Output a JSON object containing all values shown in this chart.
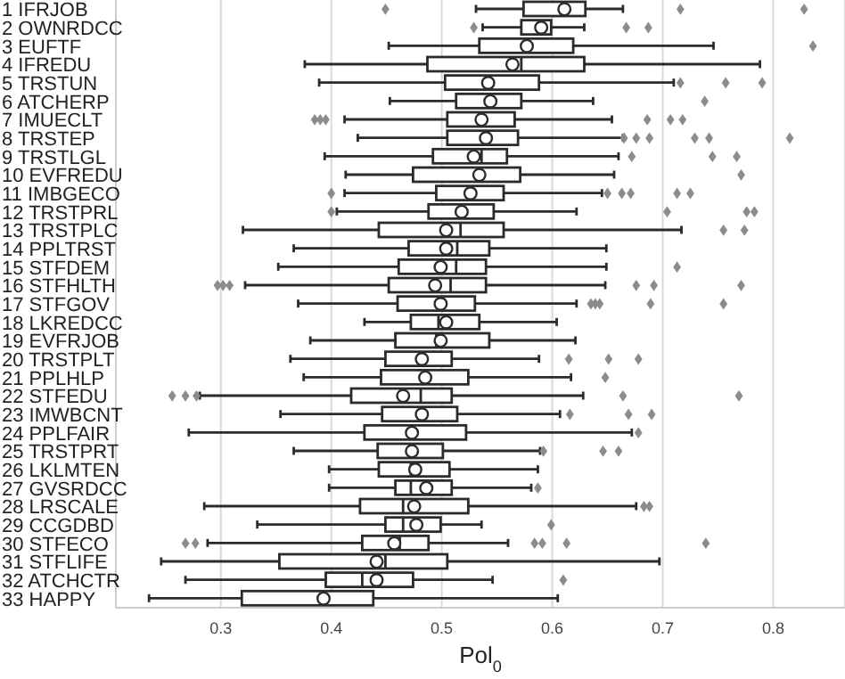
{
  "chart_data": {
    "type": "box",
    "orientation": "horizontal",
    "xlabel": "Pol$_{0}$",
    "categories": [
      "1 IFRJOB",
      "2 OWNRDCC",
      "3 EUFTF",
      "4 IFREDU",
      "5 TRSTUN",
      "6 ATCHERP",
      "7 IMUECLT",
      "8 TRSTEP",
      "9 TRSTLGL",
      "10 EVFREDU",
      "11 IMBGECO",
      "12 TRSTPRL",
      "13 TRSTPLC",
      "14 PPLTRST",
      "15 STFDEM",
      "16 STFHLTH",
      "17 STFGOV",
      "18 LKREDCC",
      "19 EVFRJOB",
      "20 TRSTPLT",
      "21 PPLHLP",
      "22 STFEDU",
      "23 IMWBCNT",
      "24 PPLFAIR",
      "25 TRSTPRT",
      "26 LKLMTEN",
      "27 GVSRDCC",
      "28 LRSCALE",
      "29 CCGDBD",
      "30 STFECO",
      "31 STFLIFE",
      "32 ATCHCTR",
      "33 HAPPY"
    ],
    "boxes": [
      {
        "low": 0.531,
        "q1": 0.574,
        "median": 0.611,
        "q3": 0.63,
        "high": 0.664,
        "mean": 0.611,
        "outliers": [
          0.449,
          0.716,
          0.828
        ]
      },
      {
        "low": 0.537,
        "q1": 0.572,
        "median": 0.588,
        "q3": 0.599,
        "high": 0.629,
        "mean": 0.59,
        "outliers": [
          0.529,
          0.667,
          0.687
        ]
      },
      {
        "low": 0.452,
        "q1": 0.534,
        "median": 0.577,
        "q3": 0.619,
        "high": 0.746,
        "mean": 0.577,
        "outliers": [
          0.836
        ]
      },
      {
        "low": 0.376,
        "q1": 0.487,
        "median": 0.572,
        "q3": 0.629,
        "high": 0.788,
        "mean": 0.564
      },
      {
        "low": 0.389,
        "q1": 0.503,
        "median": 0.542,
        "q3": 0.588,
        "high": 0.71,
        "mean": 0.542,
        "outliers": [
          0.716,
          0.757,
          0.79
        ]
      },
      {
        "low": 0.453,
        "q1": 0.513,
        "median": 0.544,
        "q3": 0.572,
        "high": 0.637,
        "mean": 0.544,
        "outliers": [
          0.738
        ]
      },
      {
        "low": 0.412,
        "q1": 0.505,
        "median": 0.536,
        "q3": 0.566,
        "high": 0.654,
        "mean": 0.536,
        "outliers": [
          0.385,
          0.39,
          0.395,
          0.686,
          0.707,
          0.718
        ]
      },
      {
        "low": 0.424,
        "q1": 0.505,
        "median": 0.54,
        "q3": 0.569,
        "high": 0.664,
        "mean": 0.54,
        "outliers": [
          0.665,
          0.676,
          0.688,
          0.729,
          0.742,
          0.815
        ]
      },
      {
        "low": 0.394,
        "q1": 0.492,
        "median": 0.536,
        "q3": 0.559,
        "high": 0.66,
        "mean": 0.529,
        "outliers": [
          0.672,
          0.745,
          0.767
        ]
      },
      {
        "low": 0.413,
        "q1": 0.474,
        "median": 0.534,
        "q3": 0.571,
        "high": 0.656,
        "mean": 0.534,
        "outliers": [
          0.771
        ]
      },
      {
        "low": 0.412,
        "q1": 0.495,
        "median": 0.526,
        "q3": 0.556,
        "high": 0.645,
        "mean": 0.526,
        "outliers": [
          0.4,
          0.65,
          0.663,
          0.671,
          0.713,
          0.725
        ]
      },
      {
        "low": 0.405,
        "q1": 0.488,
        "median": 0.518,
        "q3": 0.547,
        "high": 0.622,
        "mean": 0.518,
        "outliers": [
          0.4,
          0.704,
          0.776,
          0.783
        ]
      },
      {
        "low": 0.32,
        "q1": 0.443,
        "median": 0.517,
        "q3": 0.556,
        "high": 0.717,
        "mean": 0.504,
        "outliers": [
          0.755,
          0.774
        ]
      },
      {
        "low": 0.366,
        "q1": 0.47,
        "median": 0.514,
        "q3": 0.543,
        "high": 0.649,
        "mean": 0.504
      },
      {
        "low": 0.352,
        "q1": 0.461,
        "median": 0.513,
        "q3": 0.54,
        "high": 0.649,
        "mean": 0.499,
        "outliers": [
          0.713
        ]
      },
      {
        "low": 0.322,
        "q1": 0.452,
        "median": 0.508,
        "q3": 0.54,
        "high": 0.648,
        "mean": 0.494,
        "outliers": [
          0.297,
          0.302,
          0.308,
          0.676,
          0.692,
          0.771
        ]
      },
      {
        "low": 0.37,
        "q1": 0.46,
        "median": 0.499,
        "q3": 0.53,
        "high": 0.622,
        "mean": 0.499,
        "outliers": [
          0.635,
          0.639,
          0.643,
          0.689,
          0.755
        ]
      },
      {
        "low": 0.43,
        "q1": 0.472,
        "median": 0.497,
        "q3": 0.534,
        "high": 0.604,
        "mean": 0.504
      },
      {
        "low": 0.381,
        "q1": 0.458,
        "median": 0.495,
        "q3": 0.543,
        "high": 0.621,
        "mean": 0.499
      },
      {
        "low": 0.363,
        "q1": 0.449,
        "median": 0.482,
        "q3": 0.509,
        "high": 0.588,
        "mean": 0.482,
        "outliers": [
          0.615,
          0.651,
          0.678
        ]
      },
      {
        "low": 0.375,
        "q1": 0.445,
        "median": 0.485,
        "q3": 0.524,
        "high": 0.617,
        "mean": 0.485,
        "outliers": [
          0.648
        ]
      },
      {
        "low": 0.281,
        "q1": 0.418,
        "median": 0.481,
        "q3": 0.509,
        "high": 0.628,
        "mean": 0.465,
        "outliers": [
          0.256,
          0.268,
          0.278,
          0.664,
          0.769
        ]
      },
      {
        "low": 0.354,
        "q1": 0.446,
        "median": 0.482,
        "q3": 0.514,
        "high": 0.607,
        "mean": 0.482,
        "outliers": [
          0.616,
          0.669,
          0.69
        ]
      },
      {
        "low": 0.271,
        "q1": 0.43,
        "median": 0.473,
        "q3": 0.522,
        "high": 0.672,
        "mean": 0.473,
        "outliers": [
          0.678
        ]
      },
      {
        "low": 0.366,
        "q1": 0.442,
        "median": 0.473,
        "q3": 0.501,
        "high": 0.589,
        "mean": 0.473,
        "outliers": [
          0.592,
          0.646,
          0.66
        ]
      },
      {
        "low": 0.398,
        "q1": 0.443,
        "median": 0.472,
        "q3": 0.507,
        "high": 0.587,
        "mean": 0.476
      },
      {
        "low": 0.398,
        "q1": 0.458,
        "median": 0.472,
        "q3": 0.509,
        "high": 0.581,
        "mean": 0.486,
        "outliers": [
          0.587
        ]
      },
      {
        "low": 0.285,
        "q1": 0.426,
        "median": 0.465,
        "q3": 0.524,
        "high": 0.676,
        "mean": 0.475,
        "outliers": [
          0.683,
          0.688
        ]
      },
      {
        "low": 0.333,
        "q1": 0.449,
        "median": 0.465,
        "q3": 0.499,
        "high": 0.536,
        "mean": 0.477,
        "outliers": [
          0.599
        ]
      },
      {
        "low": 0.288,
        "q1": 0.428,
        "median": 0.462,
        "q3": 0.488,
        "high": 0.56,
        "mean": 0.457,
        "outliers": [
          0.268,
          0.277,
          0.584,
          0.591,
          0.613,
          0.739
        ]
      },
      {
        "low": 0.246,
        "q1": 0.353,
        "median": 0.449,
        "q3": 0.505,
        "high": 0.697,
        "mean": 0.441
      },
      {
        "low": 0.268,
        "q1": 0.395,
        "median": 0.428,
        "q3": 0.474,
        "high": 0.546,
        "mean": 0.441,
        "outliers": [
          0.61
        ]
      },
      {
        "low": 0.235,
        "q1": 0.319,
        "median": 0.393,
        "q3": 0.438,
        "high": 0.605,
        "mean": 0.393
      }
    ],
    "xlim": [
      0.205,
      0.865
    ],
    "xticks": [
      0.3,
      0.4,
      0.5,
      0.6,
      0.7,
      0.8
    ],
    "grid": "x"
  }
}
